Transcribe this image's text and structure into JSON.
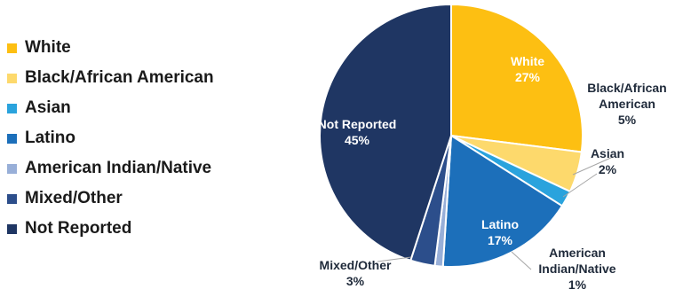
{
  "chart_data": {
    "type": "pie",
    "title": "",
    "legend_position": "left",
    "slices": [
      {
        "label": "White",
        "value": 27,
        "display_value": "27%",
        "color": "#FDBF12",
        "label_lines": [
          "White"
        ],
        "label_placement": "inside",
        "label_color": "#ffffff"
      },
      {
        "label": "Black/African American",
        "value": 5,
        "display_value": "5%",
        "color": "#FDD96C",
        "label_lines": [
          "Black/African",
          "American"
        ],
        "label_placement": "outside",
        "label_color": "#1f2a3a"
      },
      {
        "label": "Asian",
        "value": 2,
        "display_value": "2%",
        "color": "#2AA3DD",
        "label_lines": [
          "Asian"
        ],
        "label_placement": "outside",
        "label_color": "#1f2a3a"
      },
      {
        "label": "Latino",
        "value": 17,
        "display_value": "17%",
        "color": "#1C6FBA",
        "label_lines": [
          "Latino"
        ],
        "label_placement": "inside",
        "label_color": "#ffffff"
      },
      {
        "label": "American Indian/Native",
        "value": 1,
        "display_value": "1%",
        "color": "#98AFD8",
        "label_lines": [
          "American",
          "Indian/Native"
        ],
        "label_placement": "outside",
        "label_color": "#1f2a3a"
      },
      {
        "label": "Mixed/Other",
        "value": 3,
        "display_value": "3%",
        "color": "#2C4E8B",
        "label_lines": [
          "Mixed/Other"
        ],
        "label_placement": "outside",
        "label_color": "#1f2a3a"
      },
      {
        "label": "Not Reported",
        "value": 45,
        "display_value": "45%",
        "color": "#1F3663",
        "label_lines": [
          "Not Reported"
        ],
        "label_placement": "inside",
        "label_color": "#ffffff"
      }
    ]
  }
}
